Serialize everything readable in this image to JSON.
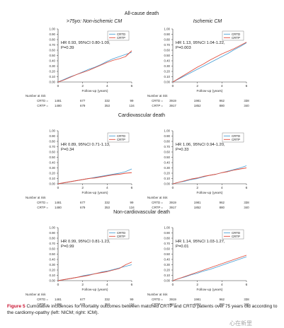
{
  "figure": {
    "column_headers": [
      ">75yo: Non-ischemic CM",
      "Ischemic CM"
    ],
    "x_label": "Follow-up (years)",
    "at_risk_title": "Number at risk",
    "caption_label": "Figure 5",
    "caption_text": " Cumulative incidences for mortality outcomes between matched CRTP and CRTD patients over 75 years old according to the cardiomy-opathy (left: NICM; right: ICM).",
    "watermark": "心在新里",
    "colors": {
      "CRTD": "#4a9fd4",
      "CRTP": "#e04c3c"
    }
  },
  "chart_data": [
    {
      "type": "line",
      "row_title": "All-cause death",
      "column": ">75yo: Non-ischemic CM",
      "xlim": [
        0,
        6
      ],
      "ylim": [
        0,
        1
      ],
      "xticks": [
        0,
        2,
        4,
        6
      ],
      "yticks": [
        "0.00",
        "0.10",
        "0.20",
        "0.30",
        "0.40",
        "0.50",
        "0.60",
        "0.70",
        "0.80",
        "0.90",
        "1.00"
      ],
      "stat": [
        "HR 0.93, 95%CI 0.80-1.09,",
        "P=0.39"
      ],
      "legend": [
        "CRTD",
        "CRTP"
      ],
      "series": [
        {
          "name": "CRTD",
          "x": [
            0,
            0.5,
            1,
            1.5,
            2,
            2.5,
            3,
            3.5,
            4,
            4.5,
            5,
            5.5,
            6
          ],
          "y": [
            0,
            0.05,
            0.1,
            0.14,
            0.19,
            0.24,
            0.28,
            0.33,
            0.39,
            0.44,
            0.48,
            0.52,
            0.56
          ]
        },
        {
          "name": "CRTP",
          "x": [
            0,
            0.5,
            1,
            1.5,
            2,
            2.5,
            3,
            3.5,
            4,
            4.5,
            5,
            5.5,
            6
          ],
          "y": [
            0,
            0.04,
            0.09,
            0.14,
            0.18,
            0.22,
            0.27,
            0.32,
            0.37,
            0.41,
            0.44,
            0.48,
            0.59
          ]
        }
      ],
      "at_risk": [
        {
          "label": "CRTD =",
          "values": [
            "1481",
            "677",
            "332",
            "99"
          ]
        },
        {
          "label": "CRTP =",
          "values": [
            "1480",
            "679",
            "353",
            "134"
          ]
        }
      ]
    },
    {
      "type": "line",
      "row_title": "",
      "column": "Ischemic CM",
      "xlim": [
        0,
        6
      ],
      "ylim": [
        0,
        1
      ],
      "xticks": [
        0,
        2,
        4,
        6
      ],
      "yticks": [
        "0.00",
        "0.10",
        "0.20",
        "0.30",
        "0.40",
        "0.50",
        "0.60",
        "0.70",
        "0.80",
        "0.90",
        "1.00"
      ],
      "stat": [
        "HR 1.13, 95%CI 1.04-1.22,",
        "P=0.003"
      ],
      "legend": [
        "CRTD",
        "CRTP"
      ],
      "series": [
        {
          "name": "CRTD",
          "x": [
            0,
            0.5,
            1,
            1.5,
            2,
            2.5,
            3,
            3.5,
            4,
            4.5,
            5,
            5.5,
            6
          ],
          "y": [
            0,
            0.06,
            0.12,
            0.18,
            0.24,
            0.3,
            0.36,
            0.42,
            0.48,
            0.54,
            0.61,
            0.67,
            0.74
          ]
        },
        {
          "name": "CRTP",
          "x": [
            0,
            0.5,
            1,
            1.5,
            2,
            2.5,
            3,
            3.5,
            4,
            4.5,
            5,
            5.5,
            6
          ],
          "y": [
            0,
            0.07,
            0.14,
            0.21,
            0.28,
            0.34,
            0.41,
            0.47,
            0.53,
            0.58,
            0.63,
            0.69,
            0.75
          ]
        }
      ],
      "at_risk": [
        {
          "label": "CRTD =",
          "values": [
            "3919",
            "1981",
            "962",
            "338"
          ]
        },
        {
          "label": "CRTP =",
          "values": [
            "3917",
            "1852",
            "880",
            "340"
          ]
        }
      ]
    },
    {
      "type": "line",
      "row_title": "Cardiovascular death",
      "column": ">75yo: Non-ischemic CM",
      "xlim": [
        0,
        6
      ],
      "ylim": [
        0,
        1
      ],
      "xticks": [
        0,
        2,
        4,
        6
      ],
      "yticks": [
        "0.00",
        "0.10",
        "0.20",
        "0.30",
        "0.40",
        "0.50",
        "0.60",
        "0.70",
        "0.80",
        "0.90",
        "1.00"
      ],
      "stat": [
        "HR 0.89, 95%CI 0.71-1.13,",
        "P=0.34"
      ],
      "legend": [
        "CRTD",
        "CRTP"
      ],
      "series": [
        {
          "name": "CRTD",
          "x": [
            0,
            0.5,
            1,
            1.5,
            2,
            2.5,
            3,
            3.5,
            4,
            4.5,
            5,
            5.5,
            6
          ],
          "y": [
            0,
            0.02,
            0.04,
            0.06,
            0.08,
            0.1,
            0.12,
            0.14,
            0.16,
            0.18,
            0.2,
            0.23,
            0.28
          ]
        },
        {
          "name": "CRTP",
          "x": [
            0,
            0.5,
            1,
            1.5,
            2,
            2.5,
            3,
            3.5,
            4,
            4.5,
            5,
            5.5,
            6
          ],
          "y": [
            0,
            0.02,
            0.04,
            0.06,
            0.08,
            0.1,
            0.11,
            0.13,
            0.15,
            0.17,
            0.18,
            0.2,
            0.21
          ]
        }
      ],
      "at_risk": [
        {
          "label": "CRTD =",
          "values": [
            "1481",
            "677",
            "332",
            "99"
          ]
        },
        {
          "label": "CRTP =",
          "values": [
            "1480",
            "679",
            "353",
            "134"
          ]
        }
      ]
    },
    {
      "type": "line",
      "row_title": "",
      "column": "Ischemic CM",
      "xlim": [
        0,
        6
      ],
      "ylim": [
        0,
        1
      ],
      "xticks": [
        0,
        2,
        4,
        6
      ],
      "yticks": [
        "0.00",
        "0.10",
        "0.20",
        "0.30",
        "0.40",
        "0.50",
        "0.60",
        "0.70",
        "0.80",
        "0.90",
        "1.00"
      ],
      "stat": [
        "HR 1.06, 95%CI 0.94-1.20,",
        "P=0.33"
      ],
      "legend": [
        "CRTD",
        "CRTP"
      ],
      "series": [
        {
          "name": "CRTD",
          "x": [
            0,
            0.5,
            1,
            1.5,
            2,
            2.5,
            3,
            3.5,
            4,
            4.5,
            5,
            5.5,
            6
          ],
          "y": [
            0,
            0.03,
            0.05,
            0.08,
            0.1,
            0.13,
            0.16,
            0.18,
            0.21,
            0.24,
            0.27,
            0.3,
            0.34
          ]
        },
        {
          "name": "CRTP",
          "x": [
            0,
            0.5,
            1,
            1.5,
            2,
            2.5,
            3,
            3.5,
            4,
            4.5,
            5,
            5.5,
            6
          ],
          "y": [
            0,
            0.03,
            0.06,
            0.09,
            0.11,
            0.14,
            0.16,
            0.18,
            0.21,
            0.23,
            0.26,
            0.28,
            0.3
          ]
        }
      ],
      "at_risk": [
        {
          "label": "CRTD =",
          "values": [
            "3919",
            "1981",
            "962",
            "338"
          ]
        },
        {
          "label": "CRTP =",
          "values": [
            "3917",
            "1852",
            "880",
            "340"
          ]
        }
      ]
    },
    {
      "type": "line",
      "row_title": "Non-cardiovascular death",
      "column": ">75yo: Non-ischemic CM",
      "xlim": [
        0,
        6
      ],
      "ylim": [
        0,
        1
      ],
      "xticks": [
        0,
        2,
        4,
        6
      ],
      "yticks": [
        "0.00",
        "0.10",
        "0.20",
        "0.30",
        "0.40",
        "0.50",
        "0.60",
        "0.70",
        "0.80",
        "0.90",
        "1.00"
      ],
      "stat": [
        "HR 0.99, 95%CI 0.81-1.23,",
        "P=0.99"
      ],
      "legend": [
        "CRTD",
        "CRTP"
      ],
      "series": [
        {
          "name": "CRTD",
          "x": [
            0,
            0.5,
            1,
            1.5,
            2,
            2.5,
            3,
            3.5,
            4,
            4.5,
            5,
            5.5,
            6
          ],
          "y": [
            0,
            0.02,
            0.04,
            0.06,
            0.09,
            0.11,
            0.13,
            0.16,
            0.18,
            0.21,
            0.24,
            0.27,
            0.3
          ]
        },
        {
          "name": "CRTP",
          "x": [
            0,
            0.5,
            1,
            1.5,
            2,
            2.5,
            3,
            3.5,
            4,
            4.5,
            5,
            5.5,
            6
          ],
          "y": [
            0,
            0.02,
            0.04,
            0.06,
            0.08,
            0.1,
            0.13,
            0.15,
            0.17,
            0.2,
            0.23,
            0.3,
            0.35
          ]
        }
      ],
      "at_risk": [
        {
          "label": "CRTD =",
          "values": [
            "1481",
            "677",
            "332",
            "99"
          ]
        },
        {
          "label": "CRTP =",
          "values": [
            "1480",
            "679",
            "353",
            "134"
          ]
        }
      ]
    },
    {
      "type": "line",
      "row_title": "",
      "column": "Ischemic CM",
      "xlim": [
        0,
        6
      ],
      "ylim": [
        0,
        1
      ],
      "xticks": [
        0,
        2,
        4,
        6
      ],
      "yticks": [
        "0.00",
        "0.10",
        "0.20",
        "0.30",
        "0.40",
        "0.50",
        "0.60",
        "0.70",
        "0.80",
        "0.90",
        "1.00"
      ],
      "stat": [
        "HR 1.14, 95%CI 1.03-1.27,",
        "P=0.01"
      ],
      "legend": [
        "CRTD",
        "CRTP"
      ],
      "series": [
        {
          "name": "CRTD",
          "x": [
            0,
            0.5,
            1,
            1.5,
            2,
            2.5,
            3,
            3.5,
            4,
            4.5,
            5,
            5.5,
            6
          ],
          "y": [
            0,
            0.04,
            0.07,
            0.11,
            0.14,
            0.18,
            0.21,
            0.25,
            0.29,
            0.33,
            0.37,
            0.41,
            0.45
          ]
        },
        {
          "name": "CRTP",
          "x": [
            0,
            0.5,
            1,
            1.5,
            2,
            2.5,
            3,
            3.5,
            4,
            4.5,
            5,
            5.5,
            6
          ],
          "y": [
            0,
            0.04,
            0.08,
            0.12,
            0.16,
            0.2,
            0.24,
            0.28,
            0.32,
            0.36,
            0.4,
            0.44,
            0.48
          ]
        }
      ],
      "at_risk": [
        {
          "label": "CRTD =",
          "values": [
            "3919",
            "1981",
            "962",
            "338"
          ]
        },
        {
          "label": "CRTP =",
          "values": [
            "3917",
            "1852",
            "880",
            "340"
          ]
        }
      ]
    }
  ]
}
